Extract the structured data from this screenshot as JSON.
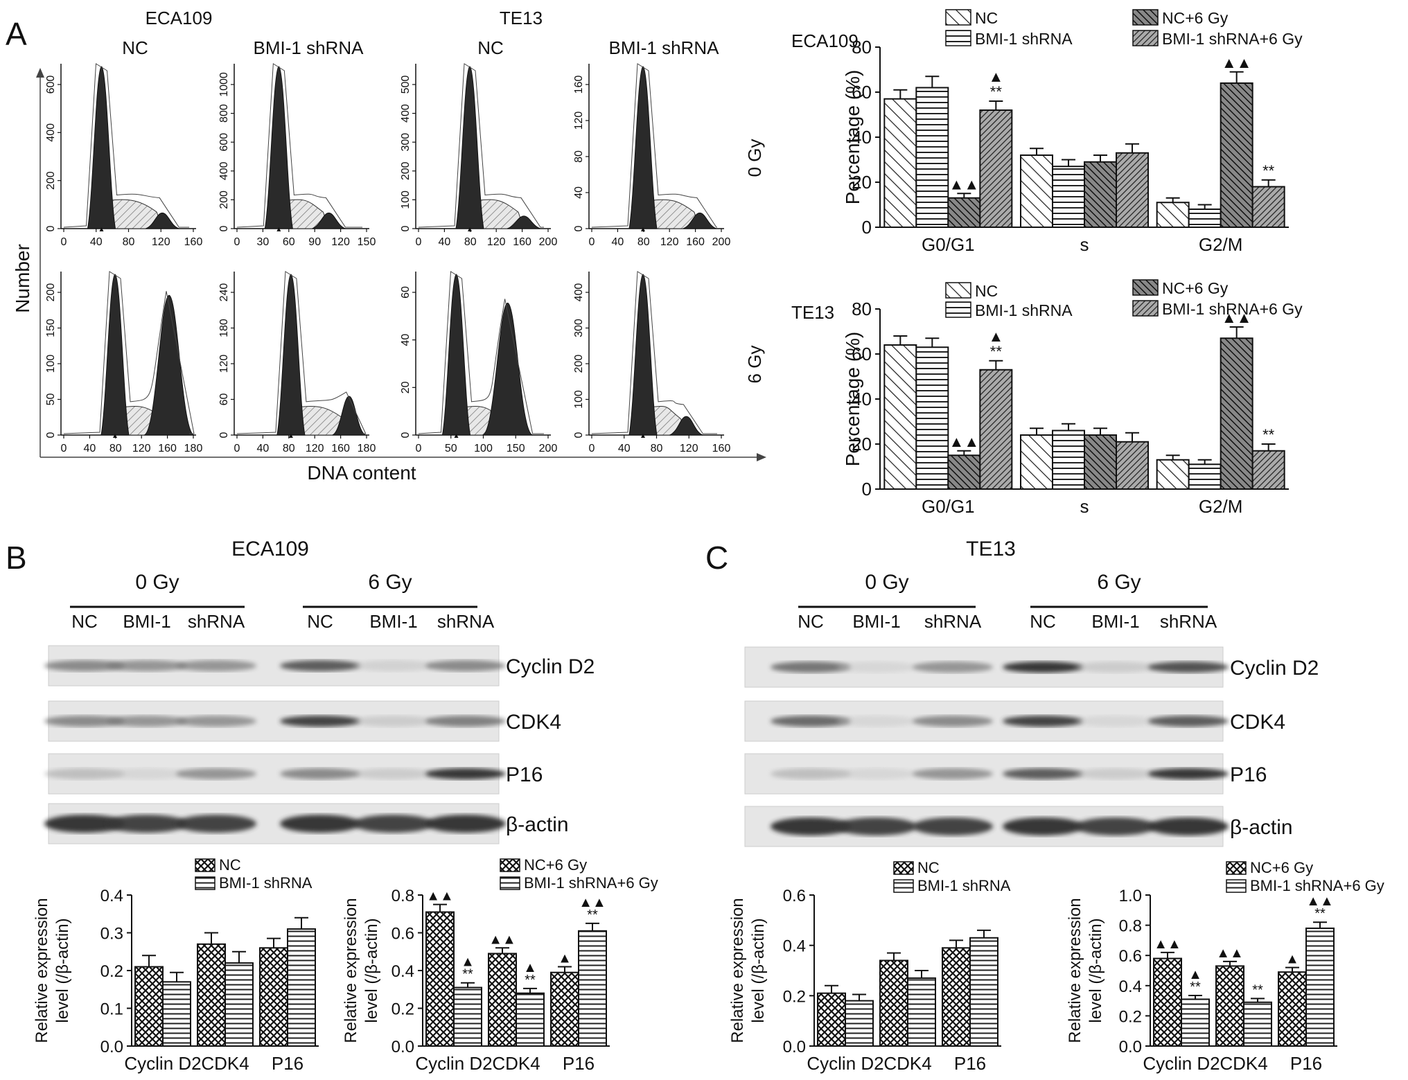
{
  "figure": {
    "panels": {
      "A": "A",
      "B": "B",
      "C": "C"
    }
  },
  "panelA": {
    "cell_lines": [
      "ECA109",
      "TE13"
    ],
    "conditions": [
      "NC",
      "BMI-1 shRNA",
      "NC",
      "BMI-1 shRNA"
    ],
    "doses": [
      "0 Gy",
      "6 Gy"
    ],
    "ylabel": "Number",
    "xlabel": "DNA content",
    "histograms": [
      {
        "ticks_x": [
          "0",
          "40",
          "80",
          "120",
          "160"
        ],
        "ticks_y": [
          "0",
          "200",
          "400",
          "600"
        ],
        "peak": 0.3,
        "g2": 0.75,
        "g2h": 0.1
      },
      {
        "ticks_x": [
          "0",
          "30",
          "60",
          "90",
          "120",
          "150"
        ],
        "ticks_y": [
          "0",
          "200",
          "400",
          "600",
          "800",
          "1000"
        ],
        "peak": 0.33,
        "g2": 0.7,
        "g2h": 0.1
      },
      {
        "ticks_x": [
          "0",
          "40",
          "80",
          "120",
          "160",
          "200"
        ],
        "ticks_y": [
          "0",
          "100",
          "200",
          "300",
          "400",
          "500"
        ],
        "peak": 0.4,
        "g2": 0.8,
        "g2h": 0.08
      },
      {
        "ticks_x": [
          "0",
          "40",
          "80",
          "120",
          "160",
          "200"
        ],
        "ticks_y": [
          "0",
          "40",
          "80",
          "120",
          "160"
        ],
        "peak": 0.4,
        "g2": 0.82,
        "g2h": 0.1
      },
      {
        "ticks_x": [
          "0",
          "40",
          "80",
          "120",
          "160",
          "180"
        ],
        "ticks_y": [
          "0",
          "50",
          "100",
          "150",
          "200"
        ],
        "peak": 0.4,
        "g2": 0.8,
        "g2h": 0.9
      },
      {
        "ticks_x": [
          "0",
          "40",
          "80",
          "120",
          "160",
          "180"
        ],
        "ticks_y": [
          "0",
          "60",
          "120",
          "180",
          "240"
        ],
        "peak": 0.42,
        "g2": 0.85,
        "g2h": 0.25
      },
      {
        "ticks_x": [
          "0",
          "50",
          "100",
          "150",
          "200"
        ],
        "ticks_y": [
          "0",
          "20",
          "40",
          "60"
        ],
        "peak": 0.3,
        "g2": 0.68,
        "g2h": 0.85
      },
      {
        "ticks_x": [
          "0",
          "40",
          "80",
          "120",
          "160"
        ],
        "ticks_y": [
          "0",
          "100",
          "200",
          "300",
          "400"
        ],
        "peak": 0.4,
        "g2": 0.72,
        "g2h": 0.12
      }
    ]
  },
  "chart_data": [
    {
      "type": "bar",
      "title": "ECA109",
      "ylabel": "Percentage (%)",
      "ylim": [
        0,
        80
      ],
      "yticks": [
        "0",
        "20",
        "40",
        "60",
        "80"
      ],
      "categories": [
        "G0/G1",
        "s",
        "G2/M"
      ],
      "legend": [
        "NC",
        "BMI-1 shRNA",
        "NC+6 Gy",
        "BMI-1 shRNA+6 Gy"
      ],
      "series": [
        {
          "name": "NC",
          "values": [
            57,
            32,
            11
          ],
          "errors": [
            4,
            3,
            2
          ]
        },
        {
          "name": "BMI-1 shRNA",
          "values": [
            62,
            27,
            8
          ],
          "errors": [
            5,
            3,
            2
          ]
        },
        {
          "name": "NC+6 Gy",
          "values": [
            13,
            29,
            64
          ],
          "errors": [
            2,
            3,
            5
          ]
        },
        {
          "name": "BMI-1 shRNA+6 Gy",
          "values": [
            52,
            33,
            18
          ],
          "errors": [
            4,
            4,
            3
          ]
        }
      ],
      "annotations": [
        {
          "series": 2,
          "category": 0,
          "text": "▲▲"
        },
        {
          "series": 3,
          "category": 0,
          "text": "▲\n**"
        },
        {
          "series": 2,
          "category": 2,
          "text": "▲▲"
        },
        {
          "series": 3,
          "category": 2,
          "text": "**"
        }
      ]
    },
    {
      "type": "bar",
      "title": "TE13",
      "ylabel": "Percentage (%)",
      "ylim": [
        0,
        80
      ],
      "yticks": [
        "0",
        "20",
        "40",
        "60",
        "80"
      ],
      "categories": [
        "G0/G1",
        "s",
        "G2/M"
      ],
      "legend": [
        "NC",
        "BMI-1 shRNA",
        "NC+6 Gy",
        "BMI-1 shRNA+6 Gy"
      ],
      "series": [
        {
          "name": "NC",
          "values": [
            64,
            24,
            13
          ],
          "errors": [
            4,
            3,
            2
          ]
        },
        {
          "name": "BMI-1 shRNA",
          "values": [
            63,
            26,
            11
          ],
          "errors": [
            4,
            3,
            2
          ]
        },
        {
          "name": "NC+6 Gy",
          "values": [
            15,
            24,
            67
          ],
          "errors": [
            2,
            3,
            5
          ]
        },
        {
          "name": "BMI-1 shRNA+6 Gy",
          "values": [
            53,
            21,
            17
          ],
          "errors": [
            4,
            4,
            3
          ]
        }
      ],
      "annotations": [
        {
          "series": 2,
          "category": 0,
          "text": "▲▲"
        },
        {
          "series": 3,
          "category": 0,
          "text": "▲\n**"
        },
        {
          "series": 2,
          "category": 2,
          "text": "▲▲"
        },
        {
          "series": 3,
          "category": 2,
          "text": "**"
        }
      ]
    },
    {
      "type": "bar",
      "ylabel": "Relative expression level (/β-actin)",
      "ylim": [
        0,
        0.4
      ],
      "yticks": [
        "0.0",
        "0.1",
        "0.2",
        "0.3",
        "0.4"
      ],
      "categories": [
        "Cyclin D2",
        "CDK4",
        "P16"
      ],
      "legend": [
        "NC",
        "BMI-1 shRNA"
      ],
      "series": [
        {
          "name": "NC",
          "values": [
            0.21,
            0.27,
            0.26
          ],
          "errors": [
            0.03,
            0.03,
            0.025
          ]
        },
        {
          "name": "BMI-1 shRNA",
          "values": [
            0.17,
            0.22,
            0.31
          ],
          "errors": [
            0.025,
            0.03,
            0.03
          ]
        }
      ],
      "annotations": []
    },
    {
      "type": "bar",
      "ylabel": "Relative expression level (/β-actin)",
      "ylim": [
        0,
        0.8
      ],
      "yticks": [
        "0.0",
        "0.2",
        "0.4",
        "0.6",
        "0.8"
      ],
      "categories": [
        "Cyclin D2",
        "CDK4",
        "P16"
      ],
      "legend": [
        "NC+6 Gy",
        "BMI-1 shRNA+6 Gy"
      ],
      "series": [
        {
          "name": "NC+6 Gy",
          "values": [
            0.71,
            0.49,
            0.39
          ],
          "errors": [
            0.04,
            0.03,
            0.03
          ]
        },
        {
          "name": "BMI-1 shRNA+6 Gy",
          "values": [
            0.31,
            0.28,
            0.61
          ],
          "errors": [
            0.025,
            0.025,
            0.04
          ]
        }
      ],
      "annotations": [
        {
          "series": 0,
          "category": 0,
          "text": "▲▲"
        },
        {
          "series": 1,
          "category": 0,
          "text": "▲\n**"
        },
        {
          "series": 0,
          "category": 1,
          "text": "▲▲"
        },
        {
          "series": 1,
          "category": 1,
          "text": "▲\n**"
        },
        {
          "series": 0,
          "category": 2,
          "text": "▲"
        },
        {
          "series": 1,
          "category": 2,
          "text": "▲▲\n**"
        }
      ]
    },
    {
      "type": "bar",
      "ylabel": "Relative expression level (/β-actin)",
      "ylim": [
        0,
        0.6
      ],
      "yticks": [
        "0.0",
        "0.2",
        "0.4",
        "0.6"
      ],
      "categories": [
        "Cyclin D2",
        "CDK4",
        "P16"
      ],
      "legend": [
        "NC",
        "BMI-1 shRNA"
      ],
      "series": [
        {
          "name": "NC",
          "values": [
            0.21,
            0.34,
            0.39
          ],
          "errors": [
            0.03,
            0.03,
            0.03
          ]
        },
        {
          "name": "BMI-1 shRNA",
          "values": [
            0.18,
            0.27,
            0.43
          ],
          "errors": [
            0.025,
            0.03,
            0.03
          ]
        }
      ],
      "annotations": []
    },
    {
      "type": "bar",
      "ylabel": "Relative expression level (/β-actin)",
      "ylim": [
        0,
        1.0
      ],
      "yticks": [
        "0.0",
        "0.2",
        "0.4",
        "0.6",
        "0.8",
        "1.0"
      ],
      "categories": [
        "Cyclin D2",
        "CDK4",
        "P16"
      ],
      "legend": [
        "NC+6 Gy",
        "BMI-1 shRNA+6 Gy"
      ],
      "series": [
        {
          "name": "NC+6 Gy",
          "values": [
            0.58,
            0.53,
            0.49
          ],
          "errors": [
            0.04,
            0.03,
            0.03
          ]
        },
        {
          "name": "BMI-1 shRNA+6 Gy",
          "values": [
            0.31,
            0.29,
            0.78
          ],
          "errors": [
            0.025,
            0.025,
            0.04
          ]
        }
      ],
      "annotations": [
        {
          "series": 0,
          "category": 0,
          "text": "▲▲"
        },
        {
          "series": 1,
          "category": 0,
          "text": "▲\n**"
        },
        {
          "series": 0,
          "category": 1,
          "text": "▲▲"
        },
        {
          "series": 1,
          "category": 1,
          "text": "**"
        },
        {
          "series": 0,
          "category": 2,
          "text": "▲"
        },
        {
          "series": 1,
          "category": 2,
          "text": "▲▲\n**"
        }
      ]
    }
  ],
  "panelB": {
    "title": "ECA109",
    "doses": [
      "0 Gy",
      "6 Gy"
    ],
    "lanes": [
      "NC",
      "BMI-1",
      "shRNA",
      "NC",
      "BMI-1",
      "shRNA"
    ],
    "proteins": [
      "Cyclin D2",
      "CDK4",
      "P16",
      "β-actin"
    ],
    "intensity": [
      [
        0.6,
        0.55,
        0.55,
        0.8,
        0.15,
        0.6
      ],
      [
        0.6,
        0.55,
        0.55,
        0.9,
        0.2,
        0.65
      ],
      [
        0.3,
        0.1,
        0.55,
        0.6,
        0.2,
        0.95
      ],
      [
        0.95,
        0.9,
        0.9,
        0.95,
        0.9,
        0.95
      ]
    ]
  },
  "panelC": {
    "title": "TE13",
    "doses": [
      "0 Gy",
      "6 Gy"
    ],
    "lanes": [
      "NC",
      "BMI-1",
      "shRNA",
      "NC",
      "BMI-1",
      "shRNA"
    ],
    "proteins": [
      "Cyclin D2",
      "CDK4",
      "P16",
      "β-actin"
    ],
    "intensity": [
      [
        0.7,
        0.1,
        0.55,
        0.95,
        0.2,
        0.85
      ],
      [
        0.75,
        0.1,
        0.6,
        0.9,
        0.1,
        0.8
      ],
      [
        0.3,
        0.1,
        0.55,
        0.8,
        0.2,
        0.95
      ],
      [
        0.95,
        0.9,
        0.9,
        0.95,
        0.9,
        0.95
      ]
    ]
  }
}
